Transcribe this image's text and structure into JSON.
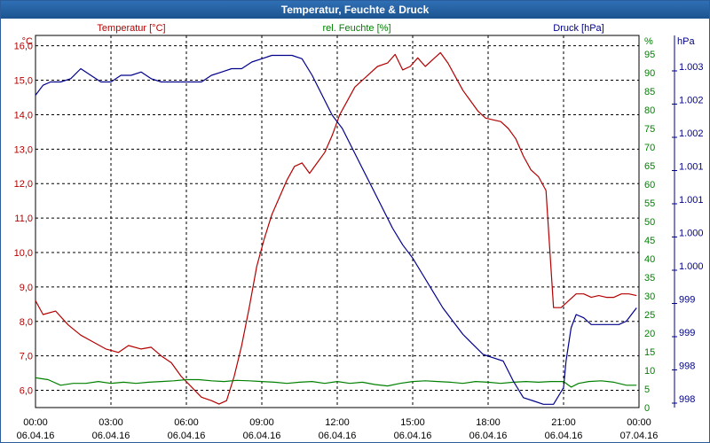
{
  "window": {
    "title": "Temperatur, Feuchte & Druck"
  },
  "colors": {
    "temperature": "#b40000",
    "humidity": "#008000",
    "pressure": "#00008b",
    "grid": "#000000",
    "text": "#000000"
  },
  "chart_data": {
    "type": "line",
    "title": "Temperatur, Feuchte & Druck",
    "x_ticks": [
      {
        "time": "00:00",
        "date": "06.04.16"
      },
      {
        "time": "03:00",
        "date": "06.04.16"
      },
      {
        "time": "06:00",
        "date": "06.04.16"
      },
      {
        "time": "09:00",
        "date": "06.04.16"
      },
      {
        "time": "12:00",
        "date": "06.04.16"
      },
      {
        "time": "15:00",
        "date": "06.04.16"
      },
      {
        "time": "18:00",
        "date": "06.04.16"
      },
      {
        "time": "21:00",
        "date": "06.04.16"
      },
      {
        "time": "00:00",
        "date": "07.04.16"
      }
    ],
    "xlim": [
      0,
      24
    ],
    "axes": {
      "temperature": {
        "label": "Temperatur [°C]",
        "unit": "°C",
        "ylim": [
          5.5,
          16.3
        ],
        "ticks": [
          "6,0",
          "7,0",
          "8,0",
          "9,0",
          "10,0",
          "11,0",
          "12,0",
          "13,0",
          "14,0",
          "15,0",
          "16,0"
        ]
      },
      "humidity": {
        "label": "rel. Feuchte [%]",
        "unit": "%",
        "ylim": [
          0,
          100
        ],
        "ticks": [
          "0",
          "5",
          "10",
          "15",
          "20",
          "25",
          "30",
          "35",
          "40",
          "45",
          "50",
          "55",
          "60",
          "65",
          "70",
          "75",
          "80",
          "85",
          "90",
          "95"
        ]
      },
      "pressure": {
        "label": "Druck [hPa]",
        "unit": "hPa",
        "ylim": [
          997.6,
          1003.2
        ],
        "ticks": [
          "998",
          "998",
          "999",
          "999",
          "1.000",
          "1.000",
          "1.001",
          "1.001",
          "1.002",
          "1.002",
          "1.003"
        ]
      }
    },
    "series": [
      {
        "name": "Temperatur",
        "axis": "temperature",
        "color": "#b40000",
        "x": [
          0,
          0.3,
          0.8,
          1.3,
          1.8,
          2.3,
          2.8,
          3.3,
          3.7,
          4.2,
          4.6,
          5.0,
          5.4,
          5.8,
          6.2,
          6.6,
          7.0,
          7.3,
          7.6,
          7.9,
          8.2,
          8.5,
          8.8,
          9.1,
          9.4,
          9.7,
          10.0,
          10.3,
          10.6,
          10.9,
          11.2,
          11.5,
          11.8,
          12.1,
          12.4,
          12.7,
          13.0,
          13.3,
          13.6,
          14.0,
          14.3,
          14.6,
          14.9,
          15.2,
          15.5,
          15.8,
          16.1,
          16.4,
          16.7,
          17.0,
          17.3,
          17.6,
          17.9,
          18.2,
          18.5,
          18.8,
          19.1,
          19.4,
          19.7,
          20.0,
          20.3,
          20.6,
          20.9,
          21.2,
          21.5,
          21.8,
          22.1,
          22.4,
          22.7,
          23.0,
          23.3,
          23.6,
          23.9
        ],
        "values": [
          8.6,
          8.2,
          8.3,
          7.9,
          7.6,
          7.4,
          7.2,
          7.1,
          7.3,
          7.2,
          7.25,
          7.0,
          6.8,
          6.4,
          6.1,
          5.8,
          5.7,
          5.6,
          5.7,
          6.4,
          7.3,
          8.4,
          9.6,
          10.4,
          11.1,
          11.6,
          12.1,
          12.5,
          12.6,
          12.3,
          12.6,
          12.9,
          13.4,
          14.0,
          14.4,
          14.8,
          15.0,
          15.2,
          15.4,
          15.5,
          15.75,
          15.3,
          15.4,
          15.65,
          15.4,
          15.6,
          15.8,
          15.5,
          15.1,
          14.7,
          14.4,
          14.1,
          13.9,
          13.85,
          13.8,
          13.6,
          13.3,
          12.8,
          12.4,
          12.2,
          11.8,
          8.4,
          8.4,
          8.6,
          8.8,
          8.8,
          8.7,
          8.75,
          8.7,
          8.7,
          8.8,
          8.8,
          8.75
        ]
      },
      {
        "name": "rel. Feuchte",
        "axis": "humidity",
        "color": "#008000",
        "x": [
          0,
          0.5,
          1.0,
          1.5,
          2.0,
          2.5,
          3.0,
          3.5,
          4.0,
          4.5,
          5.0,
          5.5,
          6.0,
          6.5,
          7.0,
          7.5,
          8.0,
          8.5,
          9.0,
          9.5,
          10.0,
          10.5,
          11.0,
          11.5,
          12.0,
          12.5,
          13.0,
          13.5,
          14.0,
          14.5,
          15.0,
          15.5,
          16.0,
          16.5,
          17.0,
          17.5,
          18.0,
          18.5,
          19.0,
          19.5,
          20.0,
          20.5,
          21.0,
          21.3,
          21.6,
          22.0,
          22.5,
          23.0,
          23.5,
          23.9
        ],
        "values": [
          8,
          7.5,
          6,
          6.5,
          6.5,
          7,
          6.5,
          6.8,
          6.5,
          6.8,
          7,
          7.2,
          7.5,
          7.5,
          7.2,
          7,
          7.3,
          7.2,
          7,
          6.8,
          6.5,
          6.8,
          7,
          6.5,
          7,
          6.5,
          6.8,
          6.2,
          5.8,
          6.5,
          7,
          7.2,
          7,
          6.8,
          6.5,
          7,
          6.8,
          6.5,
          6.8,
          7,
          6.8,
          7,
          7,
          5.5,
          6.5,
          7,
          7.2,
          6.8,
          6,
          6
        ]
      },
      {
        "name": "Druck",
        "axis": "pressure",
        "color": "#00008b",
        "x": [
          0,
          0.3,
          0.6,
          1.0,
          1.4,
          1.8,
          2.2,
          2.6,
          3.0,
          3.4,
          3.8,
          4.2,
          4.6,
          5.0,
          5.4,
          5.8,
          6.2,
          6.6,
          7.0,
          7.4,
          7.8,
          8.2,
          8.6,
          9.0,
          9.4,
          9.8,
          10.2,
          10.6,
          11.0,
          11.4,
          11.8,
          12.2,
          12.6,
          13.0,
          13.4,
          13.8,
          14.2,
          14.6,
          15.0,
          15.4,
          15.8,
          16.2,
          16.6,
          17.0,
          17.4,
          17.8,
          18.2,
          18.6,
          19.0,
          19.4,
          19.8,
          20.2,
          20.6,
          21.0,
          21.1,
          21.3,
          21.5,
          21.8,
          22.1,
          22.5,
          22.9,
          23.2,
          23.5,
          23.9
        ],
        "values": [
          1002.3,
          1002.45,
          1002.5,
          1002.5,
          1002.55,
          1002.7,
          1002.6,
          1002.5,
          1002.5,
          1002.6,
          1002.6,
          1002.65,
          1002.55,
          1002.5,
          1002.5,
          1002.5,
          1002.5,
          1002.5,
          1002.6,
          1002.65,
          1002.7,
          1002.7,
          1002.8,
          1002.85,
          1002.9,
          1002.9,
          1002.9,
          1002.85,
          1002.6,
          1002.3,
          1002.0,
          1001.8,
          1001.5,
          1001.2,
          1000.9,
          1000.6,
          1000.3,
          1000.05,
          999.85,
          999.6,
          999.35,
          999.1,
          998.9,
          998.7,
          998.55,
          998.4,
          998.35,
          998.3,
          998.0,
          997.75,
          997.7,
          997.65,
          997.65,
          997.9,
          998.3,
          998.8,
          999.0,
          998.95,
          998.85,
          998.85,
          998.85,
          998.85,
          998.9,
          999.1
        ]
      }
    ]
  }
}
